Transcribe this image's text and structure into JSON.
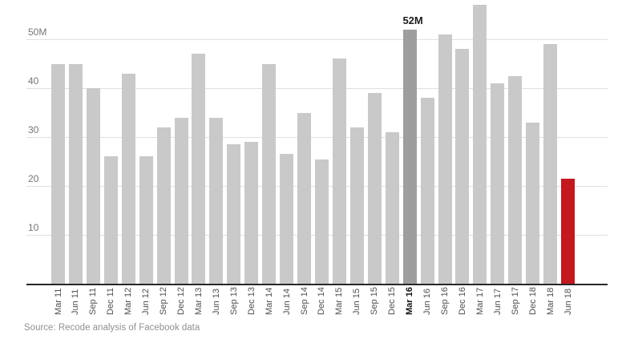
{
  "chart_data": {
    "type": "bar",
    "title": "",
    "xlabel": "",
    "ylabel": "",
    "value_unit": "M",
    "categories": [
      "Mar 11",
      "Jun 11",
      "Sep 11",
      "Dec 11",
      "Mar 12",
      "Jun 12",
      "Sep 12",
      "Dec 12",
      "Mar 13",
      "Jun 13",
      "Sep 13",
      "Dec 13",
      "Mar 14",
      "Jun 14",
      "Sep 14",
      "Dec 14",
      "Mar 15",
      "Jun 15",
      "Sep 15",
      "Dec 15",
      "Mar 16",
      "Jun 16",
      "Sep 16",
      "Dec 16",
      "Mar 17",
      "Jun 17",
      "Sep 17",
      "Dec 18",
      "Mar 18",
      "Jun 18"
    ],
    "values": [
      45,
      45,
      40,
      26,
      43,
      26,
      32,
      34,
      47,
      34,
      28.5,
      29,
      45,
      26.5,
      35,
      25.5,
      46,
      32,
      39,
      31,
      52,
      38,
      51,
      48,
      57,
      41,
      42.5,
      33,
      49,
      21.5
    ],
    "ylim": [
      0,
      58
    ],
    "yticks": [
      {
        "value": 50,
        "label": "50M"
      },
      {
        "value": 40,
        "label": "40"
      },
      {
        "value": 30,
        "label": "30"
      },
      {
        "value": 20,
        "label": "20"
      },
      {
        "value": 10,
        "label": "10"
      }
    ],
    "grid": true,
    "legend": "none",
    "annotation": {
      "text": "52M",
      "category": "Mar 16"
    },
    "highlight": {
      "category": "Mar 16",
      "color": "#9e9e9e",
      "bold_axis_label": true
    },
    "accent": {
      "category": "Jun 18",
      "color": "#c4171e"
    },
    "colors": {
      "bar_default": "#c9c9c9",
      "bar_highlight": "#9e9e9e",
      "bar_accent": "#c4171e",
      "gridline": "#e0e0e0",
      "axis_line": "#26282b",
      "ytick_label": "#757575",
      "xtick_label": "#505050",
      "annotation_text": "#1d1d1d"
    }
  },
  "source": {
    "text": "Source: Recode analysis of Facebook data"
  }
}
